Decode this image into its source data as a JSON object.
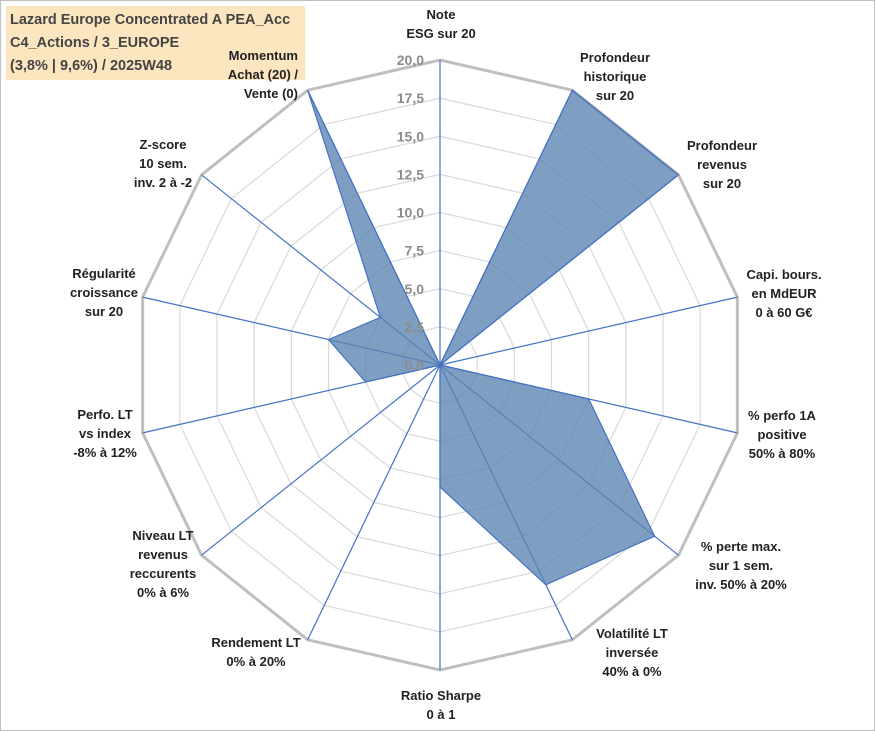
{
  "title_box": {
    "line1": "Lazard Europe Concentrated A PEA_Acc",
    "line2": "C4_Actions / 3_EUROPE",
    "line3": "(3,8% | 9,6%) / 2025W48"
  },
  "chart_data": {
    "type": "radar",
    "rmax": 20,
    "ticks": [
      "0,0",
      "2,5",
      "5,0",
      "7,5",
      "10,0",
      "12,5",
      "15,0",
      "17,5",
      "20,0"
    ],
    "axes": [
      [
        "Note",
        "ESG sur 20"
      ],
      [
        "Profondeur",
        "historique",
        "sur 20"
      ],
      [
        "Profondeur",
        "revenus",
        "sur 20"
      ],
      [
        "Capi. bours.",
        "en MdEUR",
        "0 à 60 G€"
      ],
      [
        "% perfo 1A",
        "positive",
        "50% à 80%"
      ],
      [
        "% perte max.",
        "sur 1 sem.",
        "inv. 50% à 20%"
      ],
      [
        "Volatilité LT",
        "inversée",
        "40% à 0%"
      ],
      [
        "Ratio Sharpe",
        "0 à 1"
      ],
      [
        "Rendement LT",
        "0% à 20%"
      ],
      [
        "Niveau LT",
        "revenus",
        "reccurents",
        "0% à 6%"
      ],
      [
        "Perfo. LT",
        "vs index",
        "-8% à 12%"
      ],
      [
        "Régularité",
        "croissance",
        "sur 20"
      ],
      [
        "Z-score",
        "10 sem.",
        "inv. 2 à -2"
      ],
      [
        "Momentum",
        "Achat (20) /",
        "Vente (0)"
      ]
    ],
    "series": [
      {
        "values": [
          0,
          20,
          20,
          0,
          10,
          18,
          16,
          8,
          0,
          0,
          5,
          7.5,
          5,
          20
        ],
        "color": "#5b84b1"
      }
    ],
    "grid": true,
    "colors": {
      "grid": "#d9d9d9",
      "outer": "#bfbfbf",
      "spoke": "#4472c4",
      "fill": "#5b84b1"
    }
  }
}
